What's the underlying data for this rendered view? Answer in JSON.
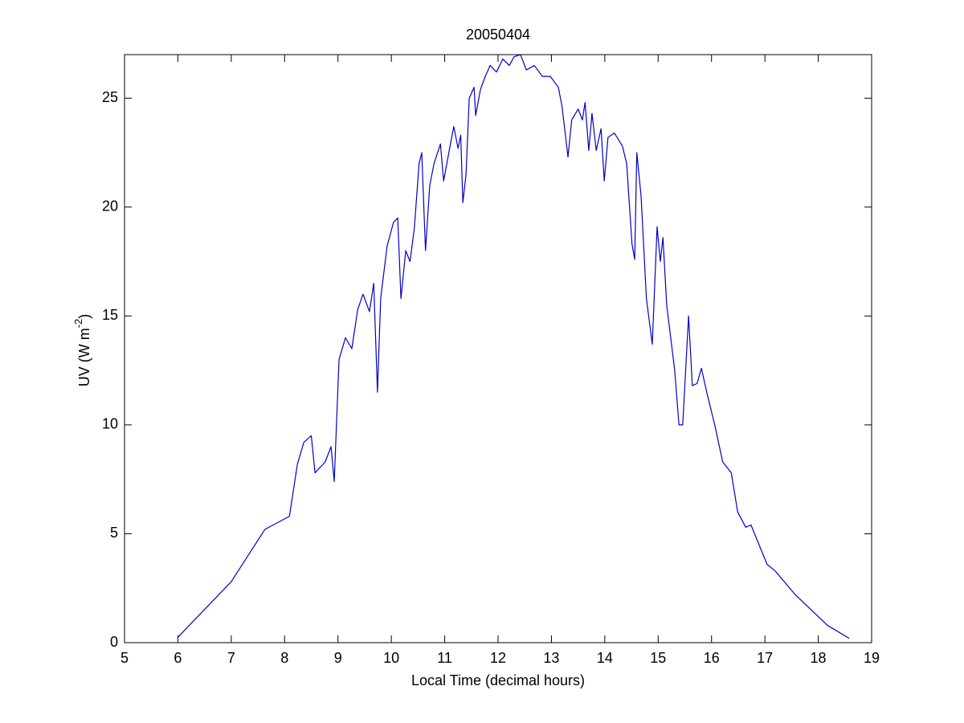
{
  "chart_data": {
    "type": "line",
    "title": "20050404",
    "xlabel": "Local Time (decimal hours)",
    "ylabel": {
      "text": "UV (W m",
      "superscript": "-2",
      "suffix": ")"
    },
    "x": [
      6.0,
      7.0,
      7.63,
      8.09,
      8.24,
      8.36,
      8.5,
      8.57,
      8.76,
      8.87,
      8.93,
      9.02,
      9.14,
      9.26,
      9.37,
      9.47,
      9.59,
      9.67,
      9.74,
      9.8,
      9.92,
      10.04,
      10.12,
      10.18,
      10.27,
      10.35,
      10.43,
      10.52,
      10.57,
      10.64,
      10.72,
      10.8,
      10.92,
      10.98,
      11.1,
      11.17,
      11.25,
      11.3,
      11.34,
      11.4,
      11.46,
      11.55,
      11.58,
      11.67,
      11.76,
      11.85,
      11.97,
      12.09,
      12.21,
      12.3,
      12.42,
      12.53,
      12.68,
      12.83,
      12.98,
      13.13,
      13.2,
      13.31,
      13.38,
      13.5,
      13.58,
      13.63,
      13.7,
      13.76,
      13.84,
      13.93,
      13.99,
      14.06,
      14.18,
      14.33,
      14.41,
      14.51,
      14.56,
      14.6,
      14.68,
      14.78,
      14.89,
      14.98,
      15.04,
      15.09,
      15.16,
      15.31,
      15.39,
      15.46,
      15.57,
      15.64,
      15.73,
      15.81,
      15.91,
      16.06,
      16.21,
      16.37,
      16.49,
      16.64,
      16.74,
      16.89,
      17.04,
      17.19,
      17.57,
      17.87,
      18.17,
      18.58
    ],
    "values": [
      0.25,
      2.8,
      5.2,
      5.8,
      8.2,
      9.2,
      9.5,
      7.8,
      8.3,
      9.0,
      7.4,
      13.0,
      14.0,
      13.5,
      15.3,
      16.0,
      15.2,
      16.5,
      11.5,
      15.8,
      18.2,
      19.3,
      19.5,
      15.8,
      18.0,
      17.5,
      19.0,
      22.0,
      22.5,
      18.0,
      21.0,
      22.0,
      22.9,
      21.2,
      22.8,
      23.7,
      22.7,
      23.3,
      20.2,
      21.5,
      25.0,
      25.5,
      24.2,
      25.4,
      26.0,
      26.5,
      26.2,
      26.8,
      26.5,
      26.9,
      27.0,
      26.3,
      26.5,
      26.0,
      26.0,
      25.5,
      24.6,
      22.3,
      24.0,
      24.5,
      24.0,
      24.8,
      22.6,
      24.3,
      22.6,
      23.6,
      21.2,
      23.2,
      23.4,
      22.8,
      22.0,
      18.3,
      17.6,
      22.5,
      20.5,
      15.8,
      13.7,
      19.1,
      17.5,
      18.6,
      15.5,
      12.5,
      10.0,
      10.0,
      15.0,
      11.8,
      11.9,
      12.6,
      11.5,
      10.0,
      8.3,
      7.8,
      6.0,
      5.3,
      5.4,
      4.5,
      3.6,
      3.3,
      2.2,
      1.5,
      0.8,
      0.2
    ],
    "color": "#0000c8",
    "xlim": [
      5,
      19
    ],
    "xticks": [
      5,
      6,
      7,
      8,
      9,
      10,
      11,
      12,
      13,
      14,
      15,
      16,
      17,
      18,
      19
    ],
    "ylim": [
      0,
      27
    ],
    "yticks": [
      0,
      5,
      10,
      15,
      20,
      25
    ]
  }
}
